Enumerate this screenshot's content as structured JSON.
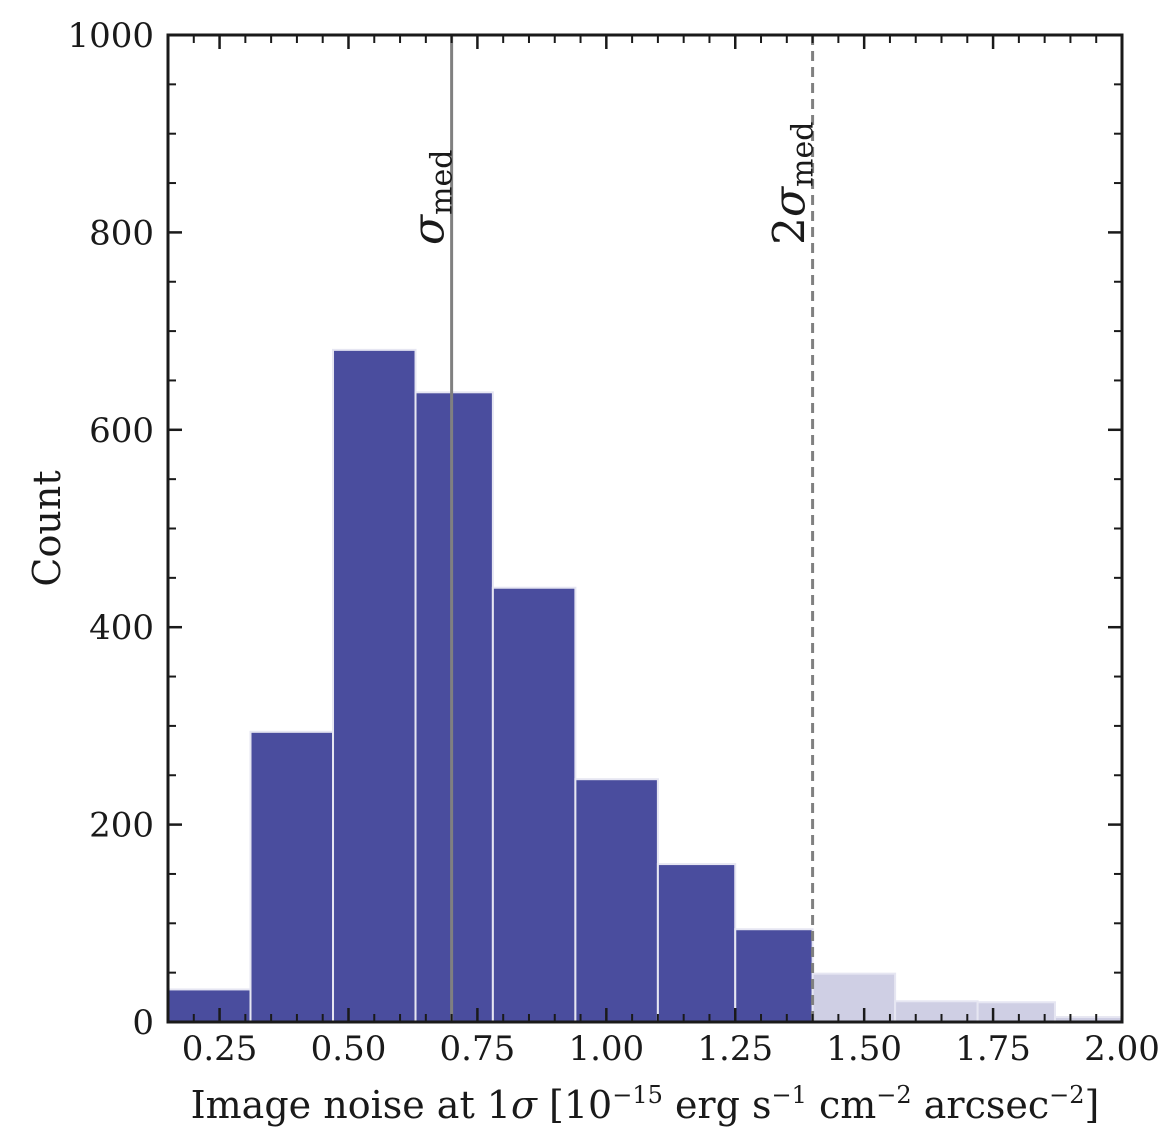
{
  "chart_data": {
    "type": "bar",
    "title": "",
    "xlabel": "Image noise at 1σ [10−15 erg s−1 cm−2 arcsec−2]",
    "xlabel_parts": {
      "prefix": "Image noise at 1",
      "sigma": "σ",
      "open": " [10",
      "exp1": "−15",
      "mid1": " erg s",
      "exp2": "−1",
      "mid2": " cm",
      "exp3": "−2",
      "mid3": " arcsec",
      "exp4": "−2",
      "close": "]"
    },
    "ylabel": "Count",
    "xlim": [
      0.15,
      2.0
    ],
    "ylim": [
      0,
      1000
    ],
    "xticks": [
      "0.25",
      "0.50",
      "0.75",
      "1.00",
      "1.25",
      "1.50",
      "1.75",
      "2.00"
    ],
    "xtick_values": [
      0.25,
      0.5,
      0.75,
      1.0,
      1.25,
      1.5,
      1.75,
      2.0
    ],
    "yticks": [
      "0",
      "200",
      "400",
      "600",
      "800",
      "1000"
    ],
    "ytick_values": [
      0,
      200,
      400,
      600,
      800,
      1000
    ],
    "bins": [
      {
        "start": 0.15,
        "end": 0.31,
        "count": 33,
        "group": "main"
      },
      {
        "start": 0.31,
        "end": 0.47,
        "count": 294,
        "group": "main"
      },
      {
        "start": 0.47,
        "end": 0.63,
        "count": 681,
        "group": "main"
      },
      {
        "start": 0.63,
        "end": 0.78,
        "count": 638,
        "group": "main"
      },
      {
        "start": 0.78,
        "end": 0.94,
        "count": 440,
        "group": "main"
      },
      {
        "start": 0.94,
        "end": 1.1,
        "count": 246,
        "group": "main"
      },
      {
        "start": 1.1,
        "end": 1.25,
        "count": 160,
        "group": "main"
      },
      {
        "start": 1.25,
        "end": 1.4,
        "count": 94,
        "group": "main"
      },
      {
        "start": 1.4,
        "end": 1.56,
        "count": 49,
        "group": "excluded"
      },
      {
        "start": 1.56,
        "end": 1.72,
        "count": 21,
        "group": "excluded"
      },
      {
        "start": 1.72,
        "end": 1.87,
        "count": 20,
        "group": "excluded"
      },
      {
        "start": 1.87,
        "end": 2.03,
        "count": 5,
        "group": "excluded"
      }
    ],
    "colors": {
      "main": "#4a4d9e",
      "excluded": "#cfcfe4",
      "bar_edge": "#e6e6f2",
      "sigma_line": "#808080",
      "axis": "#1a1a1a"
    },
    "reference_lines": [
      {
        "name": "sigma_med",
        "x": 0.7,
        "style": "solid",
        "label": "σ",
        "label_sub": "med",
        "prefix": ""
      },
      {
        "name": "two_sigma_med",
        "x": 1.4,
        "style": "dashed",
        "label": "σ",
        "label_sub": "med",
        "prefix": "2"
      }
    ],
    "x_minor_step": 0.05,
    "y_minor_step": 50
  }
}
